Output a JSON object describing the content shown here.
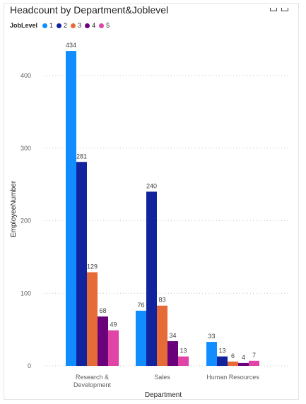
{
  "chart_data": {
    "type": "bar",
    "title": "Headcount by Department&Joblevel",
    "xlabel": "Department",
    "ylabel": "EmployeeNumber",
    "ylim": [
      0,
      440
    ],
    "yticks": [
      0,
      100,
      200,
      300,
      400
    ],
    "grid": true,
    "legend": {
      "title": "JobLevel",
      "placement": "top-left"
    },
    "categories": [
      "Research & Development",
      "Sales",
      "Human Resources"
    ],
    "series": [
      {
        "name": "1",
        "color": "#118dff",
        "values": [
          434,
          76,
          33
        ]
      },
      {
        "name": "2",
        "color": "#12239e",
        "values": [
          281,
          240,
          13
        ]
      },
      {
        "name": "3",
        "color": "#e66c37",
        "values": [
          129,
          83,
          6
        ]
      },
      {
        "name": "4",
        "color": "#6b007b",
        "values": [
          68,
          34,
          4
        ]
      },
      {
        "name": "5",
        "color": "#e044a7",
        "values": [
          49,
          13,
          7
        ]
      }
    ]
  }
}
